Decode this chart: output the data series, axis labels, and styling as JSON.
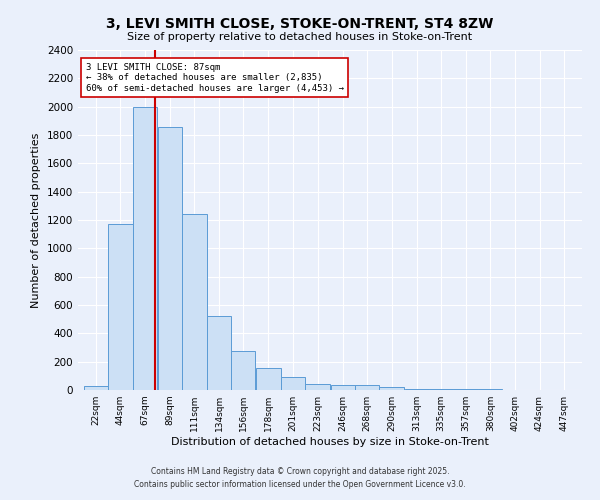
{
  "title": "3, LEVI SMITH CLOSE, STOKE-ON-TRENT, ST4 8ZW",
  "subtitle": "Size of property relative to detached houses in Stoke-on-Trent",
  "xlabel": "Distribution of detached houses by size in Stoke-on-Trent",
  "ylabel": "Number of detached properties",
  "bins": [
    22,
    44,
    67,
    89,
    111,
    134,
    156,
    178,
    201,
    223,
    246,
    268,
    290,
    313,
    335,
    357,
    380,
    402,
    424,
    447,
    469
  ],
  "counts": [
    30,
    1170,
    2000,
    1860,
    1240,
    520,
    275,
    155,
    90,
    45,
    38,
    38,
    20,
    10,
    5,
    5,
    5,
    3,
    3,
    3
  ],
  "bar_color": "#cce0f5",
  "bar_edge_color": "#5b9bd5",
  "property_size": 87,
  "vline_color": "#cc0000",
  "annotation_text": "3 LEVI SMITH CLOSE: 87sqm\n← 38% of detached houses are smaller (2,835)\n60% of semi-detached houses are larger (4,453) →",
  "annotation_box_color": "white",
  "annotation_box_edge_color": "#cc0000",
  "ylim": [
    0,
    2400
  ],
  "yticks": [
    0,
    200,
    400,
    600,
    800,
    1000,
    1200,
    1400,
    1600,
    1800,
    2000,
    2200,
    2400
  ],
  "bg_color": "#eaf0fb",
  "grid_color": "#ffffff",
  "footer_line1": "Contains HM Land Registry data © Crown copyright and database right 2025.",
  "footer_line2": "Contains public sector information licensed under the Open Government Licence v3.0."
}
